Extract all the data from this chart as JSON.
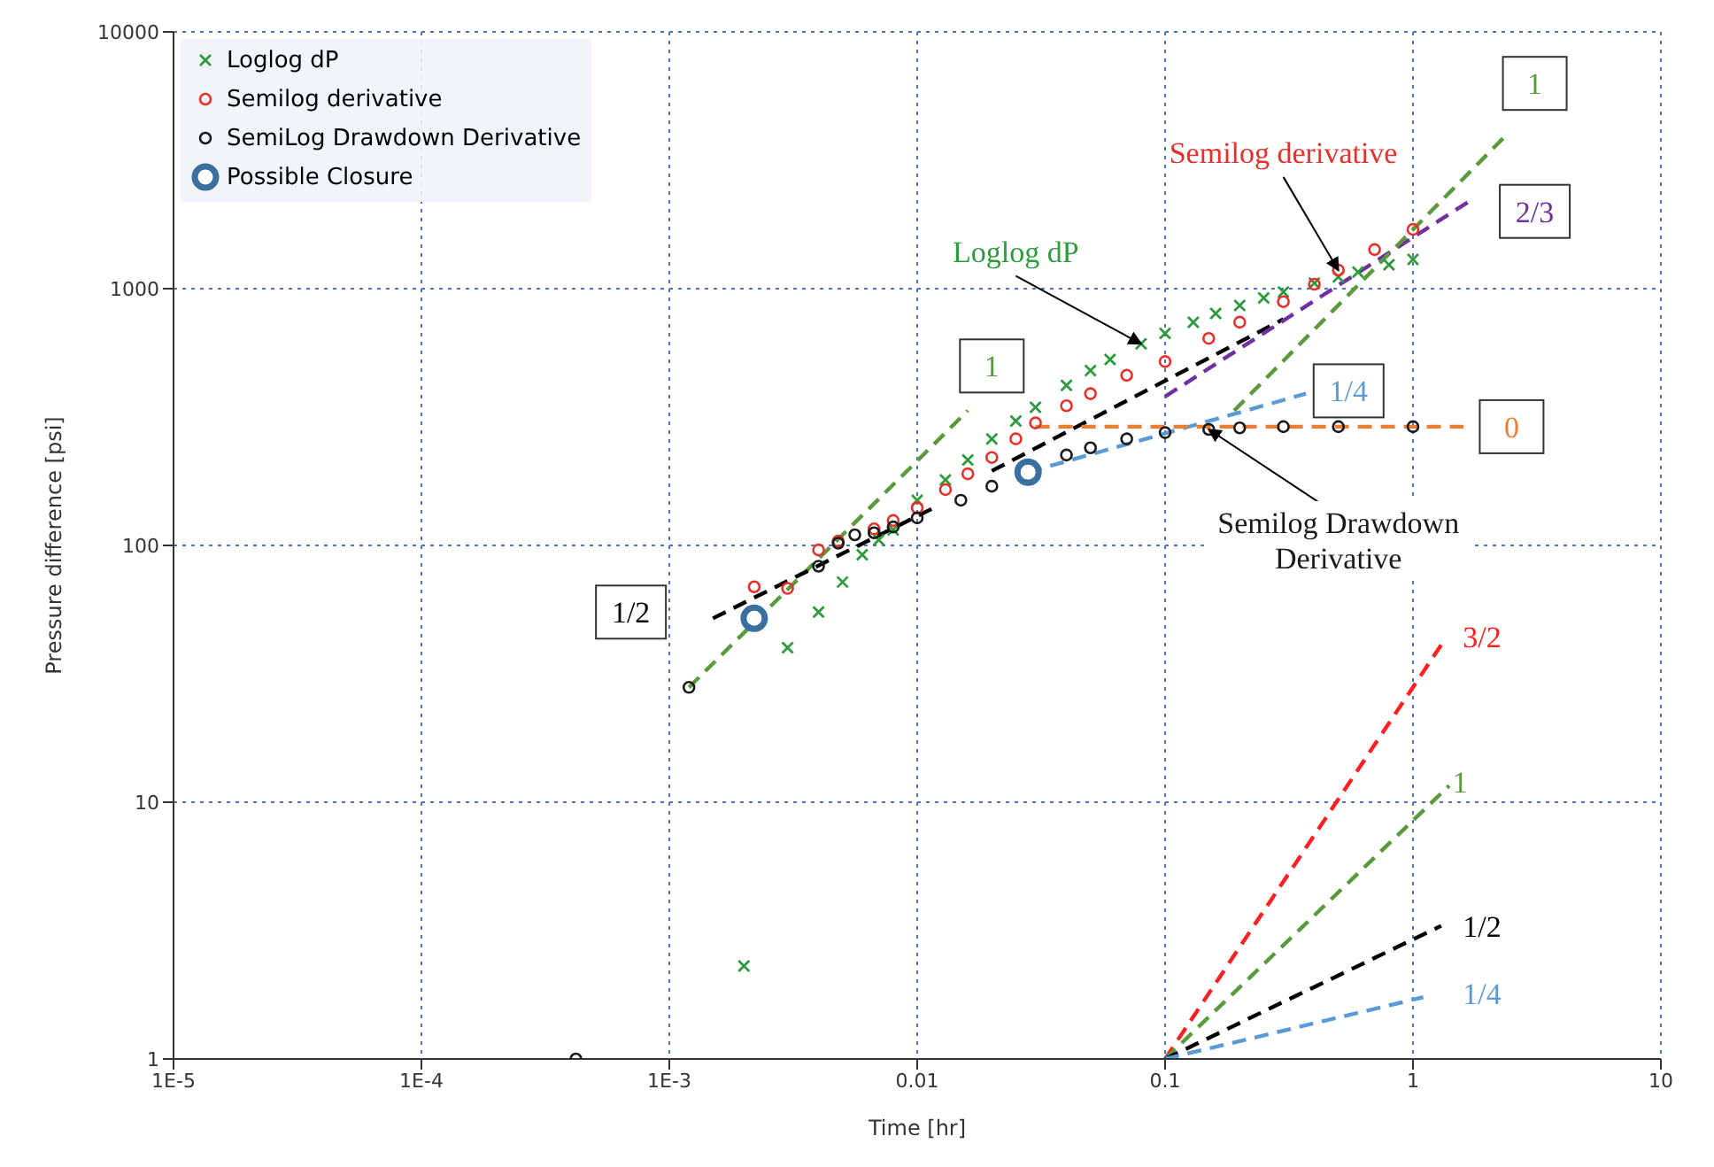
{
  "chart_data": {
    "type": "scatter",
    "xlabel": "Time [hr]",
    "ylabel": "Pressure difference [psi]",
    "log": "xy",
    "grid": true,
    "legend": "top left",
    "xlim": [
      1e-05,
      10
    ],
    "xticks": [
      {
        "value": 1e-05,
        "label": "1E-5"
      },
      {
        "value": 0.0001,
        "label": "1E-4"
      },
      {
        "value": 0.001,
        "label": "1E-3"
      },
      0.01,
      0.1,
      1,
      10
    ],
    "ylim": [
      1,
      10000
    ],
    "yticks": [
      1,
      10,
      100,
      1000,
      10000
    ],
    "series": [
      {
        "name": "Loglog dP",
        "marker": "cross",
        "color": "#2e9b3e",
        "x": [
          0.002,
          0.003,
          0.004,
          0.005,
          0.006,
          0.007,
          0.008,
          0.01,
          0.013,
          0.016,
          0.02,
          0.025,
          0.03,
          0.04,
          0.05,
          0.06,
          0.08,
          0.1,
          0.13,
          0.16,
          0.2,
          0.25,
          0.3,
          0.4,
          0.5,
          0.6,
          0.8,
          1
        ],
        "values": [
          2.3,
          40,
          55,
          72,
          92,
          105,
          115,
          150,
          180,
          215,
          260,
          305,
          345,
          420,
          480,
          530,
          610,
          670,
          740,
          800,
          860,
          920,
          970,
          1050,
          1110,
          1160,
          1240,
          1300
        ]
      },
      {
        "name": "Semilog derivative",
        "marker": "circle",
        "color": "#e8302a",
        "x": [
          0.0022,
          0.003,
          0.004,
          0.0048,
          0.0067,
          0.008,
          0.01,
          0.013,
          0.016,
          0.02,
          0.025,
          0.03,
          0.04,
          0.05,
          0.07,
          0.1,
          0.15,
          0.2,
          0.3,
          0.4,
          0.5,
          0.7,
          1
        ],
        "values": [
          69,
          68,
          96,
          104,
          116,
          125,
          140,
          165,
          190,
          220,
          260,
          300,
          350,
          390,
          460,
          520,
          640,
          740,
          890,
          1040,
          1180,
          1420,
          1700
        ]
      },
      {
        "name": "SemiLog Drawdown Derivative",
        "marker": "circle",
        "color": "#1a1a1a",
        "x": [
          0.00042,
          0.0012,
          0.004,
          0.0048,
          0.0056,
          0.0067,
          0.008,
          0.01,
          0.015,
          0.02,
          0.026,
          0.03,
          0.04,
          0.05,
          0.07,
          0.1,
          0.15,
          0.2,
          0.3,
          0.5,
          1
        ],
        "values": [
          1,
          28,
          83,
          102,
          110,
          112,
          118,
          128,
          150,
          170,
          null,
          null,
          225,
          240,
          260,
          275,
          283,
          287,
          290,
          290,
          290
        ]
      },
      {
        "name": "Possible Closure",
        "marker": "circle",
        "color": "#3a6fa0",
        "x": [
          0.0022,
          0.028
        ],
        "values": [
          52,
          193
        ]
      },
      {
        "type": "line",
        "line_style": "dashed",
        "marker": "none",
        "color": "#5a9a3c",
        "x": [
          0.0012,
          0.016
        ],
        "values": [
          28,
          335
        ]
      },
      {
        "type": "line",
        "line_style": "dashed",
        "marker": "none",
        "color": "#000000",
        "x": [
          0.0015,
          0.012
        ],
        "values": [
          52,
          142
        ]
      },
      {
        "type": "line",
        "line_style": "dashed",
        "marker": "none",
        "color": "#000000",
        "x": [
          0.02,
          0.3
        ],
        "values": [
          195,
          760
        ]
      },
      {
        "type": "line",
        "line_style": "dashed",
        "marker": "none",
        "color": "#7030a0",
        "x": [
          0.1,
          1.7
        ],
        "values": [
          380,
          2200
        ]
      },
      {
        "type": "line",
        "line_style": "dashed",
        "marker": "none",
        "color": "#5a9a3c",
        "x": [
          0.19,
          2.4
        ],
        "values": [
          335,
          4000
        ]
      },
      {
        "type": "line",
        "line_style": "dashed",
        "marker": "none",
        "color": "#5b9bd5",
        "x": [
          0.028,
          0.37
        ],
        "values": [
          193,
          390
        ]
      },
      {
        "type": "line",
        "line_style": "dashed",
        "marker": "none",
        "color": "#ed7d31",
        "x": [
          0.03,
          1.6
        ],
        "values": [
          290,
          290
        ]
      },
      {
        "type": "line",
        "line_style": "dashed",
        "marker": "none",
        "color": "#ff2020",
        "x": [
          0.1,
          1.3
        ],
        "values": [
          1,
          41
        ]
      },
      {
        "type": "line",
        "line_style": "dashed",
        "marker": "none",
        "color": "#5a9a3c",
        "x": [
          0.1,
          1.4
        ],
        "values": [
          1,
          11.6
        ]
      },
      {
        "type": "line",
        "line_style": "dashed",
        "marker": "none",
        "color": "#000000",
        "x": [
          0.1,
          1.3
        ],
        "values": [
          1,
          3.3
        ]
      },
      {
        "type": "line",
        "line_style": "dashed",
        "marker": "none",
        "color": "#5b9bd5",
        "x": [
          0.1,
          1.1
        ],
        "values": [
          1,
          1.74
        ]
      }
    ],
    "annotations": [
      {
        "text": "Loglog dP",
        "x": 0.08,
        "y": 610
      },
      {
        "text": "Semilog derivative",
        "x": 0.5,
        "y": 1180
      },
      {
        "text": "Semilog Drawdown Derivative",
        "x": 0.15,
        "y": 283
      },
      "1",
      "1/2",
      "1",
      "2/3",
      "1/4",
      "0",
      "3/2",
      "1",
      "1/2",
      "1/4"
    ]
  }
}
